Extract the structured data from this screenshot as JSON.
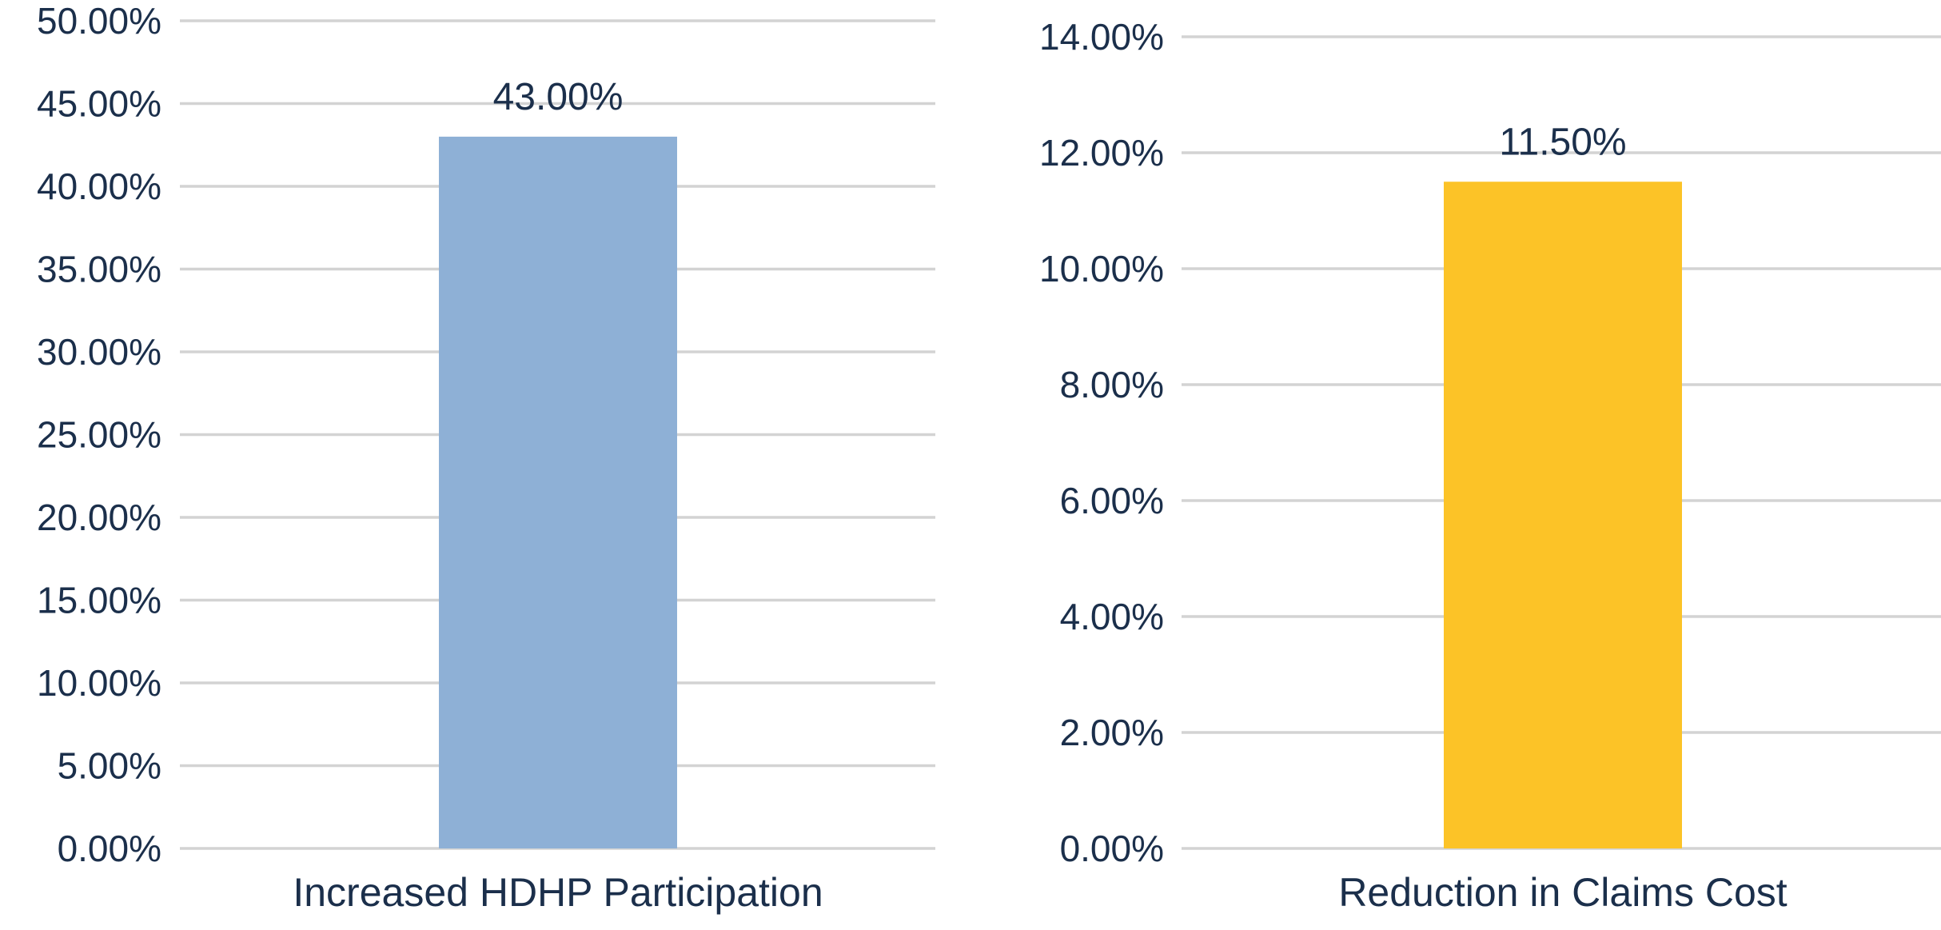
{
  "chart_data": [
    {
      "type": "bar",
      "categories": [
        "Increased HDHP Participation"
      ],
      "values": [
        43.0
      ],
      "data_labels": [
        "43.00%"
      ],
      "ylim": [
        0,
        50
      ],
      "yticks": [
        0,
        5,
        10,
        15,
        20,
        25,
        30,
        35,
        40,
        45,
        50
      ],
      "ytick_labels": [
        "0.00%",
        "5.00%",
        "10.00%",
        "15.00%",
        "20.00%",
        "25.00%",
        "30.00%",
        "35.00%",
        "40.00%",
        "45.00%",
        "50.00%"
      ],
      "grid": true,
      "color": "#8eb0d6"
    },
    {
      "type": "bar",
      "categories": [
        "Reduction in Claims Cost"
      ],
      "values": [
        11.5
      ],
      "data_labels": [
        "11.50%"
      ],
      "ylim": [
        0,
        14
      ],
      "yticks": [
        0,
        2,
        4,
        6,
        8,
        10,
        12,
        14
      ],
      "ytick_labels": [
        "0.00%",
        "2.00%",
        "4.00%",
        "6.00%",
        "8.00%",
        "10.00%",
        "12.00%",
        "14.00%"
      ],
      "grid": true,
      "color": "#fcc327"
    }
  ]
}
